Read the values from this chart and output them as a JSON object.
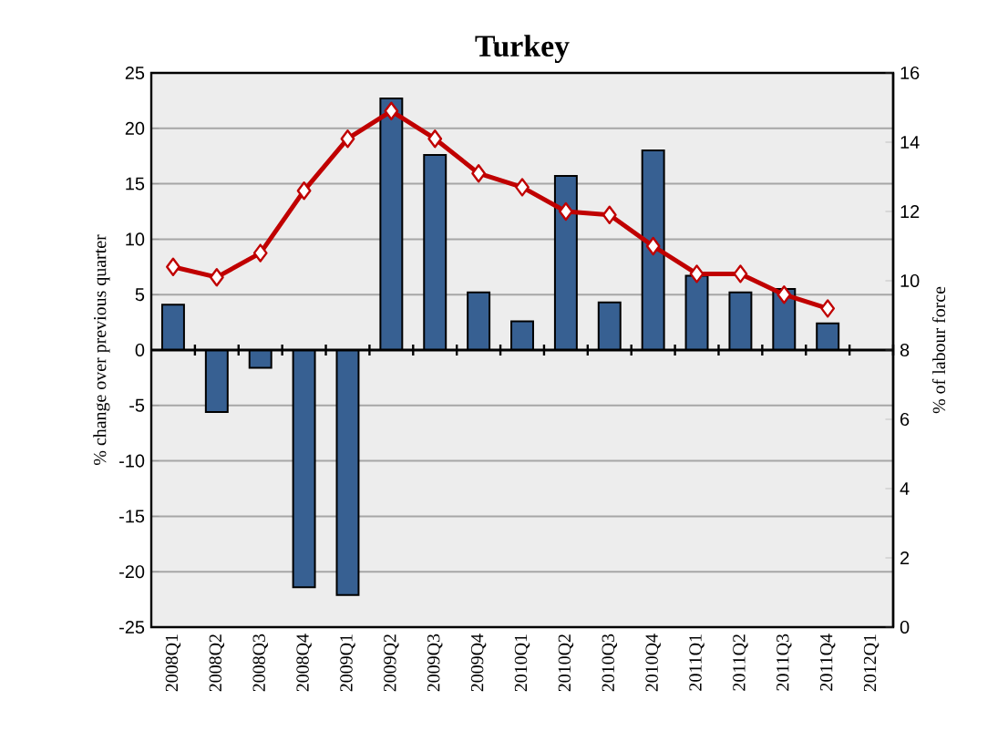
{
  "chart_data": {
    "type": "bar",
    "title": "Turkey",
    "ylabel": "% change over previous quarter",
    "y2label": "% of labour force",
    "categories": [
      "2008Q1",
      "2008Q2",
      "2008Q3",
      "2008Q4",
      "2009Q1",
      "2009Q2",
      "2009Q3",
      "2009Q4",
      "2010Q1",
      "2010Q2",
      "2010Q3",
      "2010Q4",
      "2011Q1",
      "2011Q2",
      "2011Q3",
      "2011Q4",
      "2012Q1"
    ],
    "series": [
      {
        "color": "#376092",
        "values": [
          4.1,
          -5.6,
          -1.6,
          -21.4,
          -22.1,
          22.7,
          17.6,
          5.2,
          2.6,
          15.7,
          4.3,
          18.0,
          6.7,
          5.2,
          5.5,
          2.4,
          null
        ]
      },
      {
        "type": "line",
        "axis": "y2",
        "color": "#c00000",
        "values": [
          10.4,
          10.1,
          10.8,
          12.6,
          14.1,
          14.9,
          14.1,
          13.1,
          12.7,
          12.0,
          11.9,
          11.0,
          10.2,
          10.2,
          9.6,
          9.2,
          null
        ]
      }
    ],
    "marker": "diamond",
    "ylim": [
      -25,
      25
    ],
    "yticks": [
      -25,
      -20,
      -15,
      -10,
      -5,
      0,
      5,
      10,
      15,
      20,
      25
    ],
    "y2lim": [
      0,
      16
    ],
    "y2ticks": [
      0,
      2,
      4,
      6,
      8,
      10,
      12,
      14,
      16
    ],
    "grid": "y"
  }
}
